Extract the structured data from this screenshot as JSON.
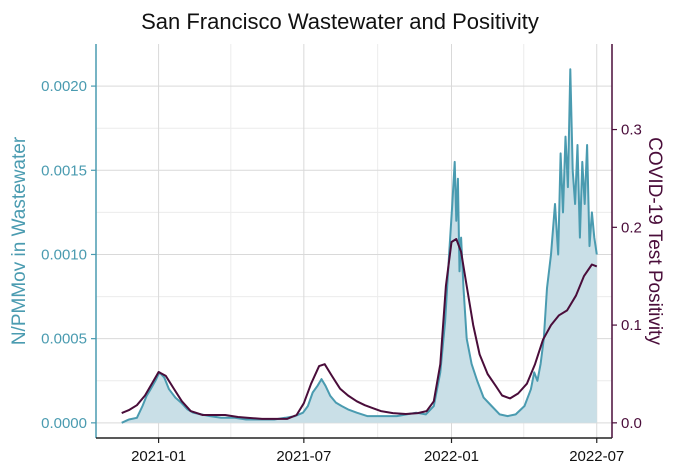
{
  "chart_data": {
    "type": "line",
    "title": "San Francisco Wastewater and Positivity",
    "xlabel": "",
    "ylabel": "N/PMMov in Wastewater",
    "y2label": "COVID-19 Test Positivity",
    "xlim": [
      "2020-10-15",
      "2022-07-20"
    ],
    "ylim": [
      -9e-05,
      0.00225
    ],
    "y2lim": [
      -0.0155,
      0.3875
    ],
    "x_ticks": [
      "2021-01",
      "2021-07",
      "2022-01",
      "2022-07"
    ],
    "y_ticks": [
      "0.0000",
      "0.0005",
      "0.0010",
      "0.0015",
      "0.0020"
    ],
    "y2_ticks": [
      "0.0",
      "0.1",
      "0.2",
      "0.3"
    ],
    "grid": true,
    "legend": "none",
    "colors": {
      "wastewater": "#4a9bb0",
      "wastewater_fill": "#c9dfe7",
      "positivity": "#4a0d3a",
      "axis_left": "#4a9bb0",
      "axis_right": "#4a0d3a"
    },
    "series": [
      {
        "axis": "left",
        "style": "line-area",
        "x": [
          "2020-11-16",
          "2020-11-25",
          "2020-12-05",
          "2020-12-12",
          "2020-12-17",
          "2020-12-22",
          "2020-12-28",
          "2021-01-02",
          "2021-01-08",
          "2021-01-14",
          "2021-01-22",
          "2021-01-29",
          "2021-02-06",
          "2021-02-13",
          "2021-02-23",
          "2021-03-06",
          "2021-03-20",
          "2021-04-06",
          "2021-04-20",
          "2021-05-10",
          "2021-05-25",
          "2021-06-08",
          "2021-06-20",
          "2021-06-30",
          "2021-07-06",
          "2021-07-12",
          "2021-07-18",
          "2021-07-23",
          "2021-07-28",
          "2021-08-03",
          "2021-08-10",
          "2021-08-17",
          "2021-08-25",
          "2021-09-05",
          "2021-09-18",
          "2021-09-28",
          "2021-10-10",
          "2021-10-25",
          "2021-11-06",
          "2021-11-18",
          "2021-11-30",
          "2021-12-10",
          "2021-12-18",
          "2021-12-24",
          "2021-12-29",
          "2022-01-02",
          "2022-01-05",
          "2022-01-07",
          "2022-01-09",
          "2022-01-11",
          "2022-01-13",
          "2022-01-16",
          "2022-01-20",
          "2022-01-26",
          "2022-02-02",
          "2022-02-10",
          "2022-02-20",
          "2022-03-02",
          "2022-03-12",
          "2022-03-22",
          "2022-04-02",
          "2022-04-10",
          "2022-04-14",
          "2022-04-18",
          "2022-04-22",
          "2022-04-26",
          "2022-04-30",
          "2022-05-05",
          "2022-05-10",
          "2022-05-14",
          "2022-05-17",
          "2022-05-20",
          "2022-05-23",
          "2022-05-26",
          "2022-05-29",
          "2022-06-01",
          "2022-06-04",
          "2022-06-07",
          "2022-06-10",
          "2022-06-13",
          "2022-06-16",
          "2022-06-19",
          "2022-06-22",
          "2022-06-25",
          "2022-06-28",
          "2022-07-01"
        ],
        "values": [
          0.0,
          2e-05,
          3e-05,
          0.0001,
          0.00016,
          0.0002,
          0.00025,
          0.0003,
          0.00027,
          0.0002,
          0.00015,
          0.00012,
          8e-05,
          6e-05,
          5e-05,
          4e-05,
          3e-05,
          3e-05,
          2e-05,
          2e-05,
          2e-05,
          3e-05,
          4e-05,
          6e-05,
          0.0001,
          0.00018,
          0.00022,
          0.00026,
          0.00022,
          0.00016,
          0.00012,
          0.0001,
          8e-05,
          6e-05,
          4e-05,
          4e-05,
          4e-05,
          4e-05,
          5e-05,
          6e-05,
          5e-05,
          0.0001,
          0.0003,
          0.0006,
          0.001,
          0.0013,
          0.00155,
          0.0012,
          0.00145,
          0.0009,
          0.0011,
          0.0008,
          0.0005,
          0.00035,
          0.00025,
          0.00015,
          0.0001,
          5e-05,
          4e-05,
          5e-05,
          0.0001,
          0.0002,
          0.0003,
          0.00025,
          0.00035,
          0.0005,
          0.0008,
          0.001,
          0.0013,
          0.001,
          0.0016,
          0.00125,
          0.0017,
          0.0014,
          0.0021,
          0.0015,
          0.0013,
          0.00165,
          0.0011,
          0.00155,
          0.0013,
          0.00165,
          0.00105,
          0.00125,
          0.0011,
          0.001
        ]
      },
      {
        "axis": "right",
        "style": "line",
        "x": [
          "2020-11-16",
          "2020-11-25",
          "2020-12-05",
          "2020-12-15",
          "2020-12-25",
          "2021-01-01",
          "2021-01-10",
          "2021-01-20",
          "2021-01-30",
          "2021-02-10",
          "2021-02-25",
          "2021-03-10",
          "2021-03-25",
          "2021-04-10",
          "2021-04-25",
          "2021-05-10",
          "2021-05-25",
          "2021-06-10",
          "2021-06-22",
          "2021-07-01",
          "2021-07-10",
          "2021-07-20",
          "2021-07-27",
          "2021-08-05",
          "2021-08-15",
          "2021-08-25",
          "2021-09-05",
          "2021-09-15",
          "2021-09-25",
          "2021-10-05",
          "2021-10-20",
          "2021-11-05",
          "2021-11-20",
          "2021-12-01",
          "2021-12-10",
          "2021-12-18",
          "2021-12-25",
          "2022-01-01",
          "2022-01-07",
          "2022-01-13",
          "2022-01-20",
          "2022-01-28",
          "2022-02-05",
          "2022-02-15",
          "2022-02-25",
          "2022-03-05",
          "2022-03-15",
          "2022-03-25",
          "2022-04-05",
          "2022-04-15",
          "2022-04-25",
          "2022-05-05",
          "2022-05-15",
          "2022-05-25",
          "2022-06-05",
          "2022-06-15",
          "2022-06-25",
          "2022-07-01"
        ],
        "values": [
          0.01,
          0.013,
          0.018,
          0.028,
          0.042,
          0.052,
          0.048,
          0.035,
          0.022,
          0.012,
          0.008,
          0.008,
          0.008,
          0.006,
          0.005,
          0.004,
          0.004,
          0.004,
          0.008,
          0.02,
          0.04,
          0.058,
          0.06,
          0.048,
          0.035,
          0.028,
          0.022,
          0.018,
          0.015,
          0.012,
          0.01,
          0.009,
          0.01,
          0.012,
          0.022,
          0.06,
          0.14,
          0.185,
          0.188,
          0.175,
          0.14,
          0.1,
          0.07,
          0.05,
          0.038,
          0.028,
          0.025,
          0.03,
          0.04,
          0.06,
          0.085,
          0.1,
          0.11,
          0.115,
          0.13,
          0.15,
          0.162,
          0.16
        ]
      }
    ]
  }
}
